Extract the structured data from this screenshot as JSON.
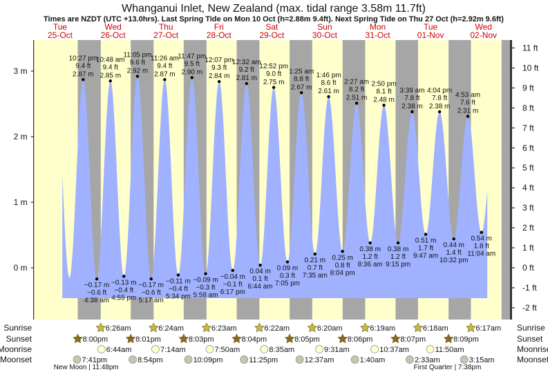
{
  "chart_data": {
    "type": "area",
    "title": "Whanganui Inlet, New Zealand (max. tidal range 3.58m 11.7ft)",
    "subtitle": "Times are NZDT (UTC +13.0hrs). Last Spring Tide on Mon 10 Oct (h=2.88m 9.4ft). Next Spring Tide on Thu 27 Oct (h=2.92m 9.6ft)",
    "time_unit": "hours since 25-Oct 00:00",
    "xlim": [
      0,
      216
    ],
    "ylim_m": [
      -0.78,
      3.5
    ],
    "left_ticks": [
      {
        "v": 3,
        "label": "3 m"
      },
      {
        "v": 2,
        "label": "2 m"
      },
      {
        "v": 1,
        "label": "1 m"
      },
      {
        "v": 0,
        "label": "0 m"
      }
    ],
    "right_ticks_ft": [
      11,
      10,
      9,
      8,
      7,
      6,
      5,
      4,
      3,
      2,
      1,
      0,
      -1,
      -2
    ],
    "right_tick_suffix": " ft",
    "days": [
      {
        "dow": "Tue",
        "date": "25-Oct"
      },
      {
        "dow": "Wed",
        "date": "26-Oct"
      },
      {
        "dow": "Thu",
        "date": "27-Oct"
      },
      {
        "dow": "Fri",
        "date": "28-Oct"
      },
      {
        "dow": "Sat",
        "date": "29-Oct"
      },
      {
        "dow": "Sun",
        "date": "30-Oct"
      },
      {
        "dow": "Mon",
        "date": "31-Oct"
      },
      {
        "dow": "Tue",
        "date": "01-Nov"
      },
      {
        "dow": "Wed",
        "date": "02-Nov"
      }
    ],
    "curve_range": [
      13,
      205.7
    ],
    "hidden_extrema": [
      {
        "t": 10.0,
        "m": 2.85
      },
      {
        "t": 16.2,
        "m": -0.15
      },
      {
        "t": 209.3,
        "m": 2.25
      }
    ],
    "tides": [
      {
        "type": "high",
        "t": 22.45,
        "m": 2.87,
        "m_label": "2.87 m",
        "ft": "9.4 ft",
        "time": "10:27 pm"
      },
      {
        "type": "low",
        "t": 28.63,
        "m": -0.17,
        "m_label": "−0.17 m",
        "ft": "−0.6 ft",
        "time": "4:38 am"
      },
      {
        "type": "high",
        "t": 34.8,
        "m": 2.85,
        "m_label": "2.85 m",
        "ft": "9.4 ft",
        "time": "10:48 am"
      },
      {
        "type": "low",
        "t": 40.92,
        "m": -0.13,
        "m_label": "−0.13 m",
        "ft": "−0.4 ft",
        "time": "4:55 pm"
      },
      {
        "type": "high",
        "t": 47.08,
        "m": 2.92,
        "m_label": "2.92 m",
        "ft": "9.6 ft",
        "time": "11:05 pm"
      },
      {
        "type": "low",
        "t": 53.28,
        "m": -0.17,
        "m_label": "−0.17 m",
        "ft": "−0.6 ft",
        "time": "5:17 am"
      },
      {
        "type": "high",
        "t": 59.43,
        "m": 2.87,
        "m_label": "2.87 m",
        "ft": "9.4 ft",
        "time": "11:26 am"
      },
      {
        "type": "low",
        "t": 65.57,
        "m": -0.11,
        "m_label": "−0.11 m",
        "ft": "−0.4 ft",
        "time": "5:34 pm"
      },
      {
        "type": "high",
        "t": 71.78,
        "m": 2.9,
        "m_label": "2.90 m",
        "ft": "9.5 ft",
        "time": "11:47 pm"
      },
      {
        "type": "low",
        "t": 77.97,
        "m": -0.09,
        "m_label": "−0.09 m",
        "ft": "−0.3 ft",
        "time": "5:58 am"
      },
      {
        "type": "high",
        "t": 84.12,
        "m": 2.84,
        "m_label": "2.84 m",
        "ft": "9.3 ft",
        "time": "12:07 pm"
      },
      {
        "type": "low",
        "t": 90.28,
        "m": -0.04,
        "m_label": "−0.04 m",
        "ft": "−0.1 ft",
        "time": "6:17 pm"
      },
      {
        "type": "high",
        "t": 96.53,
        "m": 2.81,
        "m_label": "2.81 m",
        "ft": "9.2 ft",
        "time": "12:32 am"
      },
      {
        "type": "low",
        "t": 102.73,
        "m": 0.04,
        "m_label": "0.04 m",
        "ft": "0.1 ft",
        "time": "6:44 am"
      },
      {
        "type": "high",
        "t": 108.87,
        "m": 2.75,
        "m_label": "2.75 m",
        "ft": "9.0 ft",
        "time": "12:52 pm"
      },
      {
        "type": "low",
        "t": 115.08,
        "m": 0.09,
        "m_label": "0.09 m",
        "ft": "0.3 ft",
        "time": "7:05 pm"
      },
      {
        "type": "high",
        "t": 121.42,
        "m": 2.67,
        "m_label": "2.67 m",
        "ft": "8.8 ft",
        "time": "1:25 am"
      },
      {
        "type": "low",
        "t": 127.58,
        "m": 0.21,
        "m_label": "0.21 m",
        "ft": "0.7 ft",
        "time": "7:35 am"
      },
      {
        "type": "high",
        "t": 133.77,
        "m": 2.61,
        "m_label": "2.61 m",
        "ft": "8.6 ft",
        "time": "1:46 pm"
      },
      {
        "type": "low",
        "t": 140.07,
        "m": 0.25,
        "m_label": "0.25 m",
        "ft": "0.8 ft",
        "time": "8:04 pm"
      },
      {
        "type": "high",
        "t": 146.45,
        "m": 2.51,
        "m_label": "2.51 m",
        "ft": "8.2 ft",
        "time": "2:27 am"
      },
      {
        "type": "low",
        "t": 152.6,
        "m": 0.38,
        "m_label": "0.38 m",
        "ft": "1.2 ft",
        "time": "8:36 am"
      },
      {
        "type": "high",
        "t": 158.83,
        "m": 2.48,
        "m_label": "2.48 m",
        "ft": "8.1 ft",
        "time": "2:50 pm"
      },
      {
        "type": "low",
        "t": 165.25,
        "m": 0.38,
        "m_label": "0.38 m",
        "ft": "1.2 ft",
        "time": "9:15 pm"
      },
      {
        "type": "high",
        "t": 171.65,
        "m": 2.38,
        "m_label": "2.38 m",
        "ft": "7.8 ft",
        "time": "3:39 am"
      },
      {
        "type": "low",
        "t": 177.78,
        "m": 0.51,
        "m_label": "0.51 m",
        "ft": "1.7 ft",
        "time": "9:47 am"
      },
      {
        "type": "high",
        "t": 184.07,
        "m": 2.38,
        "m_label": "2.38 m",
        "ft": "7.8 ft",
        "time": "4:04 pm"
      },
      {
        "type": "low",
        "t": 190.53,
        "m": 0.44,
        "m_label": "0.44 m",
        "ft": "1.4 ft",
        "time": "10:32 pm"
      },
      {
        "type": "high",
        "t": 196.88,
        "m": 2.31,
        "m_label": "2.31 m",
        "ft": "7.6 ft",
        "time": "4:53 am"
      },
      {
        "type": "low",
        "t": 203.07,
        "m": 0.54,
        "m_label": "0.54 m",
        "ft": "1.8 ft",
        "time": "11:04 am"
      }
    ],
    "rows": {
      "labels": {
        "sunrise": "Sunrise",
        "sunset": "Sunset",
        "moonrise": "Moonrise",
        "moonset": "Moonset"
      },
      "sunrise": [
        {
          "t": 30.43,
          "time": "6:26am"
        },
        {
          "t": 54.4,
          "time": "6:24am"
        },
        {
          "t": 78.38,
          "time": "6:23am"
        },
        {
          "t": 102.37,
          "time": "6:22am"
        },
        {
          "t": 126.33,
          "time": "6:20am"
        },
        {
          "t": 150.32,
          "time": "6:19am"
        },
        {
          "t": 174.3,
          "time": "6:18am"
        },
        {
          "t": 198.28,
          "time": "6:17am"
        }
      ],
      "sunset": [
        {
          "t": 20.0,
          "time": "8:00pm"
        },
        {
          "t": 44.02,
          "time": "8:01pm"
        },
        {
          "t": 68.05,
          "time": "8:03pm"
        },
        {
          "t": 92.07,
          "time": "8:04pm"
        },
        {
          "t": 116.08,
          "time": "8:05pm"
        },
        {
          "t": 140.1,
          "time": "8:06pm"
        },
        {
          "t": 164.12,
          "time": "8:07pm"
        },
        {
          "t": 188.15,
          "time": "8:09pm"
        },
        {
          "t": 212.17,
          "time": ""
        }
      ],
      "moonrise": [
        {
          "t": 30.73,
          "time": "6:44am"
        },
        {
          "t": 55.23,
          "time": "7:14am"
        },
        {
          "t": 79.83,
          "time": "7:50am"
        },
        {
          "t": 104.58,
          "time": "8:35am"
        },
        {
          "t": 129.52,
          "time": "9:31am"
        },
        {
          "t": 154.62,
          "time": "10:37am"
        },
        {
          "t": 179.83,
          "time": "11:50am"
        }
      ],
      "moonset": [
        {
          "t": 19.68,
          "time": "7:41pm"
        },
        {
          "t": 44.9,
          "time": "8:54pm"
        },
        {
          "t": 70.15,
          "time": "10:09pm"
        },
        {
          "t": 95.42,
          "time": "11:25pm"
        },
        {
          "t": 120.62,
          "time": "12:37am"
        },
        {
          "t": 145.67,
          "time": "1:40am"
        },
        {
          "t": 170.55,
          "time": "2:33am"
        },
        {
          "t": 195.25,
          "time": "3:15am"
        }
      ],
      "phases": [
        {
          "t": 23.8,
          "text": "New Moon | 11:48pm"
        },
        {
          "t": 187.63,
          "text": "First Quarter | 7:38pm"
        }
      ]
    },
    "colors": {
      "day": "#ffffcc",
      "night": "#a6a6a6",
      "water": "#a0b1ff",
      "dayLabel": "#cc0000",
      "sunrise": "#c8b840",
      "sunset": "#8b6a1c",
      "moonrise": "#ffffcc",
      "moonset": "#c8c4b4"
    }
  }
}
